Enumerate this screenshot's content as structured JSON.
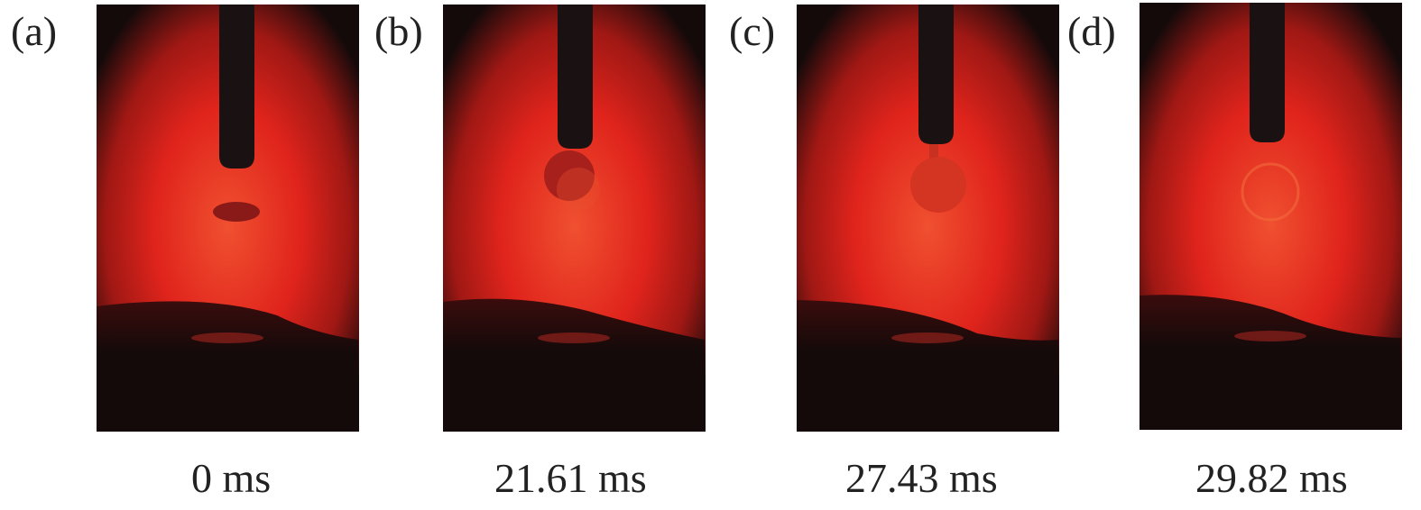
{
  "figure": {
    "panels": [
      {
        "label": "(a)",
        "time": "0 ms",
        "droplet": "detached"
      },
      {
        "label": "(b)",
        "time": "21.61 ms",
        "droplet": "growing"
      },
      {
        "label": "(c)",
        "time": "27.43 ms",
        "droplet": "necking"
      },
      {
        "label": "(d)",
        "time": "29.82 ms",
        "droplet": "transferring"
      }
    ],
    "colors": {
      "arc": "#e0241c",
      "dark": "#140a0a",
      "glow": "#f05030"
    }
  }
}
